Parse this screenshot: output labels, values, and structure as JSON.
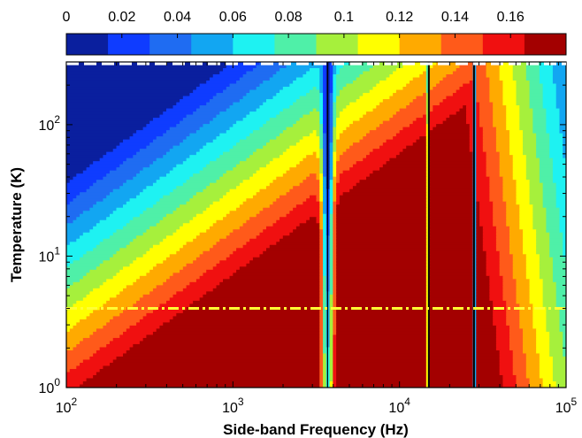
{
  "chart_data": {
    "type": "heatmap",
    "subtype": "filled-contour",
    "title": "",
    "xlabel": "Side-band Frequency (Hz)",
    "ylabel": "Temperature (K)",
    "x_scale": "log",
    "y_scale": "log",
    "xlim": [
      100,
      100000
    ],
    "ylim": [
      1,
      300
    ],
    "x_ticks": [
      {
        "base": "10",
        "exp": "2"
      },
      {
        "base": "10",
        "exp": "3"
      },
      {
        "base": "10",
        "exp": "4"
      },
      {
        "base": "10",
        "exp": "5"
      }
    ],
    "y_ticks": [
      {
        "base": "10",
        "exp": "0"
      },
      {
        "base": "10",
        "exp": "1"
      },
      {
        "base": "10",
        "exp": "2"
      }
    ],
    "colorbar": {
      "location": "top",
      "range": [
        0,
        0.18
      ],
      "tick_labels": [
        "0",
        "0.02",
        "0.04",
        "0.06",
        "0.08",
        "0.1",
        "0.12",
        "0.14",
        "0.16"
      ],
      "levels": [
        0,
        0.015,
        0.03,
        0.045,
        0.06,
        0.075,
        0.09,
        0.105,
        0.12,
        0.135,
        0.15,
        0.165,
        0.18
      ],
      "colors": [
        "#0a1f9e",
        "#0f3cff",
        "#1f6cf2",
        "#12a6f2",
        "#1ef2f2",
        "#4ff0a8",
        "#a6f03c",
        "#ffff00",
        "#ffaa00",
        "#ff5a1a",
        "#f01010",
        "#a30000"
      ]
    },
    "notches_hz": [
      3700,
      15000,
      28000
    ],
    "reference_lines": [
      {
        "style": "dashed",
        "color": "#ffffff",
        "temperature_k": 290
      },
      {
        "style": "dash-dot",
        "color": "#ffff33",
        "temperature_k": 4
      }
    ],
    "grid": false,
    "legend": "none"
  }
}
